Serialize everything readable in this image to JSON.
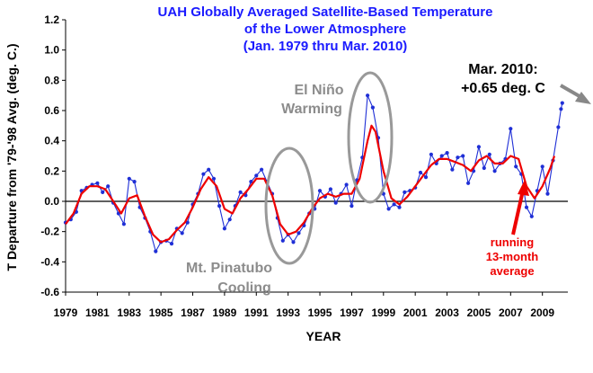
{
  "title_lines": [
    "UAH Globally Averaged Satellite-Based Temperature",
    "of the Lower Atmosphere",
    "(Jan. 1979  thru Mar. 2010)"
  ],
  "annotations": {
    "el_nino_line1": "El Niño",
    "el_nino_line2": "Warming",
    "pinatubo_line1": "Mt. Pinatubo",
    "pinatubo_line2": "Cooling",
    "latest_line1": "Mar. 2010:",
    "latest_line2": "+0.65 deg. C",
    "running_line1": "running",
    "running_line2": "13-month",
    "running_line3": "average"
  },
  "colors": {
    "monthly_series": "#1f2fd6",
    "running_average": "#ee0000",
    "annotation_gray": "#999999",
    "title": "#1a1aff"
  },
  "chart_data": {
    "type": "line",
    "title": "UAH Globally Averaged Satellite-Based Temperature of the Lower Atmosphere (Jan. 1979  thru Mar. 2010)",
    "xlabel": "YEAR",
    "ylabel": "T Departure from '79-'98 Avg. (deg. C.)",
    "xlim": [
      1979.0,
      2010.6
    ],
    "ylim": [
      -0.6,
      1.2
    ],
    "x_ticks": [
      "1979",
      "1981",
      "1983",
      "1985",
      "1987",
      "1989",
      "1991",
      "1993",
      "1995",
      "1997",
      "1999",
      "2001",
      "2003",
      "2005",
      "2007",
      "2009"
    ],
    "y_ticks": [
      "-0.6",
      "-0.4",
      "-0.2",
      "0.0",
      "0.2",
      "0.4",
      "0.6",
      "0.8",
      "1.0",
      "1.2"
    ],
    "grid": "none",
    "series": [
      {
        "name": "monthly",
        "style": "line-markers",
        "data": [
          [
            1979.0,
            -0.14
          ],
          [
            1979.33,
            -0.12
          ],
          [
            1979.67,
            -0.07
          ],
          [
            1980.0,
            0.07
          ],
          [
            1980.33,
            0.09
          ],
          [
            1980.67,
            0.11
          ],
          [
            1981.0,
            0.12
          ],
          [
            1981.33,
            0.06
          ],
          [
            1981.67,
            0.1
          ],
          [
            1982.0,
            -0.01
          ],
          [
            1982.33,
            -0.08
          ],
          [
            1982.67,
            -0.15
          ],
          [
            1983.0,
            0.15
          ],
          [
            1983.33,
            0.13
          ],
          [
            1983.67,
            -0.04
          ],
          [
            1984.0,
            -0.11
          ],
          [
            1984.33,
            -0.2
          ],
          [
            1984.67,
            -0.33
          ],
          [
            1985.0,
            -0.27
          ],
          [
            1985.33,
            -0.26
          ],
          [
            1985.67,
            -0.28
          ],
          [
            1986.0,
            -0.18
          ],
          [
            1986.33,
            -0.21
          ],
          [
            1986.67,
            -0.14
          ],
          [
            1987.0,
            -0.02
          ],
          [
            1987.33,
            0.05
          ],
          [
            1987.67,
            0.18
          ],
          [
            1988.0,
            0.21
          ],
          [
            1988.33,
            0.15
          ],
          [
            1988.67,
            -0.03
          ],
          [
            1989.0,
            -0.18
          ],
          [
            1989.33,
            -0.12
          ],
          [
            1989.67,
            -0.03
          ],
          [
            1990.0,
            0.06
          ],
          [
            1990.33,
            0.04
          ],
          [
            1990.67,
            0.13
          ],
          [
            1991.0,
            0.17
          ],
          [
            1991.33,
            0.21
          ],
          [
            1991.67,
            0.13
          ],
          [
            1992.0,
            0.05
          ],
          [
            1992.33,
            -0.11
          ],
          [
            1992.67,
            -0.26
          ],
          [
            1993.0,
            -0.22
          ],
          [
            1993.33,
            -0.27
          ],
          [
            1993.67,
            -0.21
          ],
          [
            1994.0,
            -0.16
          ],
          [
            1994.33,
            -0.08
          ],
          [
            1994.67,
            -0.05
          ],
          [
            1995.0,
            0.07
          ],
          [
            1995.33,
            0.03
          ],
          [
            1995.67,
            0.08
          ],
          [
            1996.0,
            -0.01
          ],
          [
            1996.33,
            0.05
          ],
          [
            1996.67,
            0.11
          ],
          [
            1997.0,
            -0.03
          ],
          [
            1997.33,
            0.14
          ],
          [
            1997.67,
            0.29
          ],
          [
            1998.0,
            0.7
          ],
          [
            1998.33,
            0.62
          ],
          [
            1998.67,
            0.42
          ],
          [
            1999.0,
            0.05
          ],
          [
            1999.33,
            -0.05
          ],
          [
            1999.67,
            -0.02
          ],
          [
            2000.0,
            -0.04
          ],
          [
            2000.33,
            0.06
          ],
          [
            2000.67,
            0.07
          ],
          [
            2001.0,
            0.09
          ],
          [
            2001.33,
            0.19
          ],
          [
            2001.67,
            0.16
          ],
          [
            2002.0,
            0.31
          ],
          [
            2002.33,
            0.25
          ],
          [
            2002.67,
            0.3
          ],
          [
            2003.0,
            0.32
          ],
          [
            2003.33,
            0.21
          ],
          [
            2003.67,
            0.29
          ],
          [
            2004.0,
            0.3
          ],
          [
            2004.33,
            0.12
          ],
          [
            2004.67,
            0.2
          ],
          [
            2005.0,
            0.36
          ],
          [
            2005.33,
            0.22
          ],
          [
            2005.67,
            0.31
          ],
          [
            2006.0,
            0.2
          ],
          [
            2006.33,
            0.25
          ],
          [
            2006.67,
            0.28
          ],
          [
            2007.0,
            0.48
          ],
          [
            2007.33,
            0.23
          ],
          [
            2007.67,
            0.18
          ],
          [
            2008.0,
            -0.04
          ],
          [
            2008.33,
            -0.1
          ],
          [
            2008.67,
            0.07
          ],
          [
            2009.0,
            0.23
          ],
          [
            2009.33,
            0.05
          ],
          [
            2009.67,
            0.27
          ],
          [
            2010.0,
            0.49
          ],
          [
            2010.17,
            0.61
          ],
          [
            2010.25,
            0.65
          ]
        ]
      },
      {
        "name": "running 13-month average",
        "style": "line",
        "data": [
          [
            1979.0,
            -0.15
          ],
          [
            1979.5,
            -0.08
          ],
          [
            1980.0,
            0.05
          ],
          [
            1980.5,
            0.1
          ],
          [
            1981.0,
            0.1
          ],
          [
            1981.5,
            0.08
          ],
          [
            1982.0,
            0.0
          ],
          [
            1982.5,
            -0.08
          ],
          [
            1983.0,
            0.02
          ],
          [
            1983.5,
            0.04
          ],
          [
            1984.0,
            -0.1
          ],
          [
            1984.5,
            -0.22
          ],
          [
            1985.0,
            -0.27
          ],
          [
            1985.5,
            -0.25
          ],
          [
            1986.0,
            -0.19
          ],
          [
            1986.5,
            -0.14
          ],
          [
            1987.0,
            -0.04
          ],
          [
            1987.5,
            0.08
          ],
          [
            1988.0,
            0.16
          ],
          [
            1988.5,
            0.1
          ],
          [
            1989.0,
            -0.05
          ],
          [
            1989.5,
            -0.08
          ],
          [
            1990.0,
            0.02
          ],
          [
            1990.5,
            0.08
          ],
          [
            1991.0,
            0.15
          ],
          [
            1991.5,
            0.15
          ],
          [
            1992.0,
            0.04
          ],
          [
            1992.5,
            -0.15
          ],
          [
            1993.0,
            -0.22
          ],
          [
            1993.5,
            -0.2
          ],
          [
            1994.0,
            -0.14
          ],
          [
            1994.5,
            -0.05
          ],
          [
            1995.0,
            0.02
          ],
          [
            1995.5,
            0.05
          ],
          [
            1996.0,
            0.03
          ],
          [
            1996.5,
            0.05
          ],
          [
            1997.0,
            0.05
          ],
          [
            1997.5,
            0.15
          ],
          [
            1998.0,
            0.4
          ],
          [
            1998.25,
            0.5
          ],
          [
            1998.5,
            0.46
          ],
          [
            1999.0,
            0.2
          ],
          [
            1999.5,
            0.02
          ],
          [
            2000.0,
            -0.02
          ],
          [
            2000.5,
            0.03
          ],
          [
            2001.0,
            0.1
          ],
          [
            2001.5,
            0.17
          ],
          [
            2002.0,
            0.24
          ],
          [
            2002.5,
            0.28
          ],
          [
            2003.0,
            0.28
          ],
          [
            2003.5,
            0.26
          ],
          [
            2004.0,
            0.24
          ],
          [
            2004.5,
            0.2
          ],
          [
            2005.0,
            0.27
          ],
          [
            2005.5,
            0.3
          ],
          [
            2006.0,
            0.25
          ],
          [
            2006.5,
            0.25
          ],
          [
            2007.0,
            0.3
          ],
          [
            2007.5,
            0.28
          ],
          [
            2008.0,
            0.1
          ],
          [
            2008.5,
            0.02
          ],
          [
            2009.0,
            0.1
          ],
          [
            2009.5,
            0.22
          ],
          [
            2009.75,
            0.3
          ]
        ]
      }
    ]
  }
}
